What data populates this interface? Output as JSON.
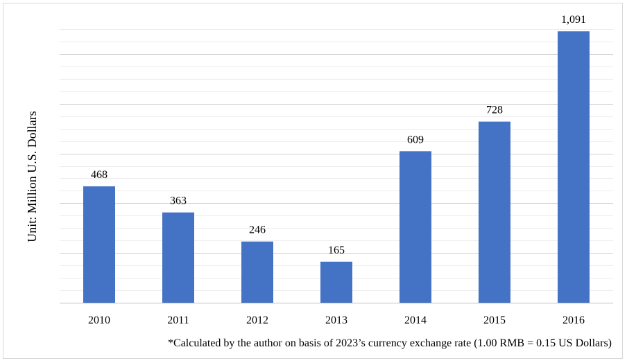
{
  "chart_data": {
    "type": "bar",
    "categories": [
      "2010",
      "2011",
      "2012",
      "2013",
      "2014",
      "2015",
      "2016"
    ],
    "values": [
      468,
      363,
      246,
      165,
      609,
      728,
      1091
    ],
    "data_labels": [
      "468",
      "363",
      "246",
      "165",
      "609",
      "728",
      "1,091"
    ],
    "title": "",
    "xlabel": "",
    "ylabel": "Unit: Million U.S. Dollars",
    "ylim": [
      0,
      1100
    ],
    "grid": true,
    "legend": "none",
    "bar_color": "#4472c4",
    "footnote": "*Calculated by the author on basis of 2023’s currency exchange rate (1.00 RMB = 0.15 US Dollars)"
  }
}
